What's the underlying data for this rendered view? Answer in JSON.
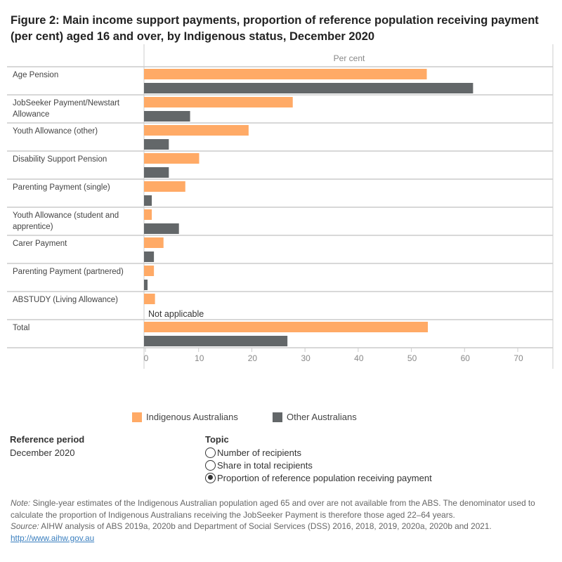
{
  "title": "Figure 2: Main income support payments, proportion of reference population receiving payment (per cent) aged 16 and over, by Indigenous status, December 2020",
  "chart_data": {
    "type": "bar",
    "orientation": "horizontal",
    "xlabel": "Per cent",
    "xlim": [
      0,
      70
    ],
    "xticks": [
      "0",
      "10",
      "20",
      "30",
      "40",
      "50",
      "60",
      "70"
    ],
    "grid": false,
    "legend_position": "bottom",
    "categories": [
      "Age Pension",
      "JobSeeker Payment/Newstart Allowance",
      "Youth Allowance (other)",
      "Disability Support Pension",
      "Parenting Payment (single)",
      "Youth Allowance (student and apprentice)",
      "Carer Payment",
      "Parenting Payment (partnered)",
      "ABSTUDY (Living Allowance)",
      "Total"
    ],
    "series": [
      {
        "name": "Indigenous Australians",
        "color": "#ffaa66",
        "values": [
          52.9,
          27.7,
          19.4,
          10.1,
          7.5,
          1.2,
          3.4,
          1.6,
          1.8,
          53.1
        ]
      },
      {
        "name": "Other Australians",
        "color": "#636769",
        "values": [
          61.6,
          8.4,
          4.4,
          4.4,
          1.2,
          6.3,
          1.6,
          0.4,
          null,
          26.7
        ]
      }
    ],
    "annotations": [
      "Not applicable"
    ]
  },
  "reference_period": {
    "label": "Reference period",
    "value": "December 2020"
  },
  "topic": {
    "label": "Topic",
    "options": [
      {
        "label": "Number of recipients",
        "selected": false
      },
      {
        "label": "Share in total recipients",
        "selected": false
      },
      {
        "label": "Proportion of reference population receiving payment",
        "selected": true
      }
    ]
  },
  "notes": {
    "note_label": "Note:",
    "note_text": " Single-year estimates of the Indigenous Australian population aged 65 and over are not available from the ABS. The denominator used to calculate the proportion of Indigenous Australians receiving the JobSeeker Payment is therefore those aged 22–64 years.",
    "source_label": "Source:",
    "source_text": " AIHW analysis of ABS 2019a, 2020b and Department of Social Services (DSS) 2016, 2018, 2019, 2020a, 2020b and 2021.",
    "link": "http://www.aihw.gov.au"
  }
}
